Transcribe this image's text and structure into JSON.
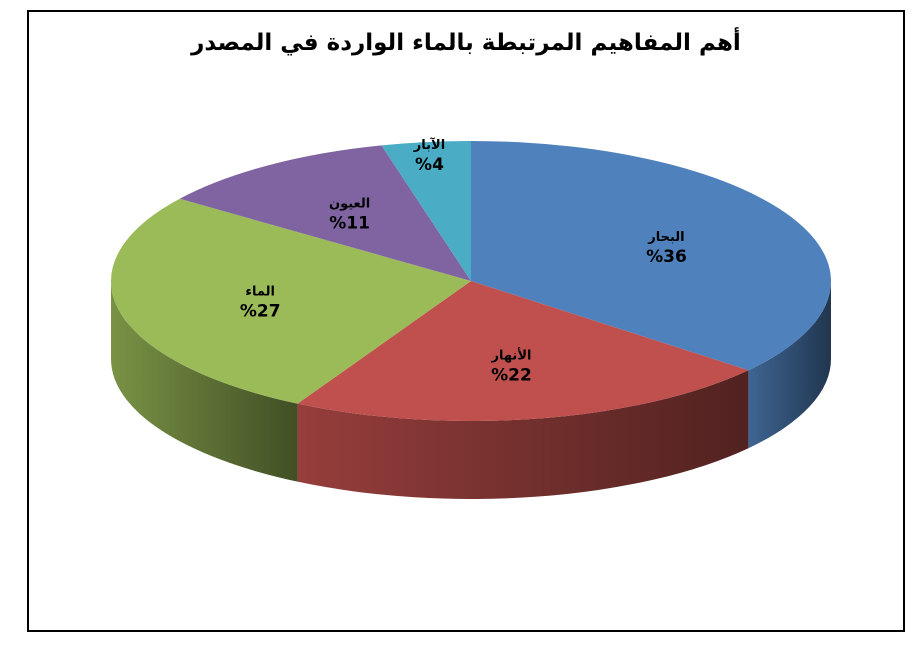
{
  "chart_data": {
    "type": "pie",
    "title": "أهم المفاهيم المرتبطة بالماء الواردة في المصدر",
    "slices": [
      {
        "name": "البحار",
        "value": 36,
        "label": "%36",
        "color": "#4F81BD"
      },
      {
        "name": "الأنهار",
        "value": 22,
        "label": "%22",
        "color": "#C0504D"
      },
      {
        "name": "الماء",
        "value": 27,
        "label": "%27",
        "color": "#9BBB59"
      },
      {
        "name": "العيون",
        "value": 11,
        "label": "%11",
        "color": "#8064A2"
      },
      {
        "name": "الآبار",
        "value": 4,
        "label": "%4",
        "color": "#4BACC6"
      }
    ],
    "style": "3d-perspective",
    "legend": "none"
  }
}
